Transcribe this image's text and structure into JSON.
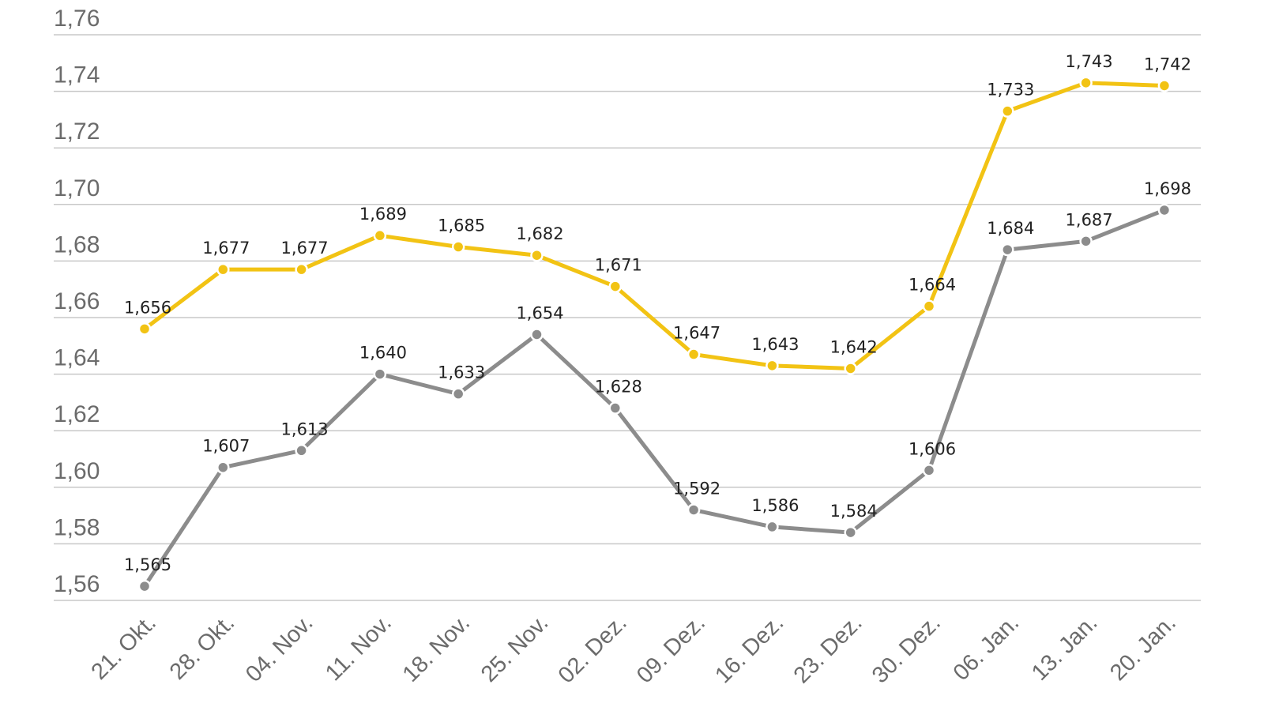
{
  "chart_data": {
    "type": "line",
    "title": "",
    "xlabel": "",
    "ylabel": "",
    "categories": [
      "21. Okt.",
      "28. Okt.",
      "04. Nov.",
      "11. Nov.",
      "18. Nov.",
      "25. Nov.",
      "02. Dez.",
      "09. Dez.",
      "16. Dez.",
      "23. Dez.",
      "30. Dez.",
      "06. Jan.",
      "13. Jan.",
      "20. Jan."
    ],
    "ylim": [
      1.56,
      1.76
    ],
    "yticks": [
      1.56,
      1.58,
      1.6,
      1.62,
      1.64,
      1.66,
      1.68,
      1.7,
      1.72,
      1.74,
      1.76
    ],
    "grid": true,
    "legend": "none",
    "decimal_separator": ",",
    "series": [
      {
        "name": "series-yellow",
        "color": "#f2c314",
        "values": [
          1.656,
          1.677,
          1.677,
          1.689,
          1.685,
          1.682,
          1.671,
          1.647,
          1.643,
          1.642,
          1.664,
          1.733,
          1.743,
          1.742
        ]
      },
      {
        "name": "series-gray",
        "color": "#8c8c8c",
        "values": [
          1.565,
          1.607,
          1.613,
          1.64,
          1.633,
          1.654,
          1.628,
          1.592,
          1.586,
          1.584,
          1.606,
          1.684,
          1.687,
          1.698
        ]
      }
    ]
  }
}
